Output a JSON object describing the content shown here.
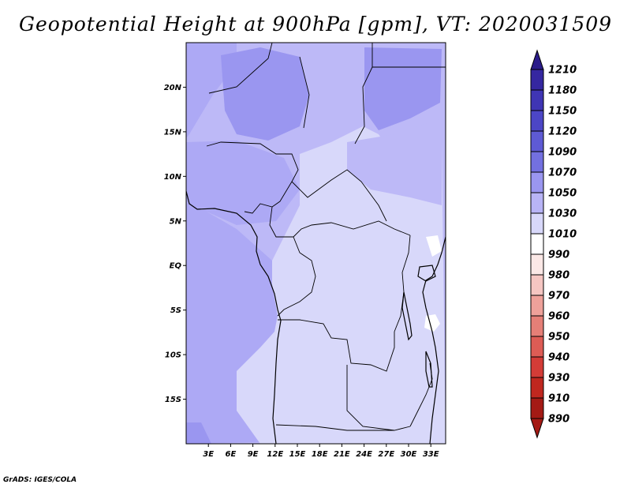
{
  "title": "Geopotential Height at 900hPa [gpm], VT: 2020031509",
  "footer": "GrADS: IGES/COLA",
  "map": {
    "lon_range": [
      0,
      35
    ],
    "lat_range": [
      -20,
      25
    ],
    "lat_ticks": [
      {
        "value": 20,
        "label": "20N"
      },
      {
        "value": 15,
        "label": "15N"
      },
      {
        "value": 10,
        "label": "10N"
      },
      {
        "value": 5,
        "label": "5N"
      },
      {
        "value": 0,
        "label": "EQ"
      },
      {
        "value": -5,
        "label": "5S"
      },
      {
        "value": -10,
        "label": "10S"
      },
      {
        "value": -15,
        "label": "15S"
      }
    ],
    "lon_ticks": [
      {
        "value": 3,
        "label": "3E"
      },
      {
        "value": 6,
        "label": "6E"
      },
      {
        "value": 9,
        "label": "9E"
      },
      {
        "value": 12,
        "label": "12E"
      },
      {
        "value": 15,
        "label": "15E"
      },
      {
        "value": 18,
        "label": "18E"
      },
      {
        "value": 21,
        "label": "21E"
      },
      {
        "value": 24,
        "label": "24E"
      },
      {
        "value": 27,
        "label": "27E"
      },
      {
        "value": 30,
        "label": "30E"
      },
      {
        "value": 33,
        "label": "33E"
      }
    ]
  },
  "colorbar": {
    "levels": [
      {
        "label": "1210",
        "color": "#2b1c8a"
      },
      {
        "label": "1180",
        "color": "#3527a0"
      },
      {
        "label": "1150",
        "color": "#3f35b4"
      },
      {
        "label": "1120",
        "color": "#4c46c6"
      },
      {
        "label": "1090",
        "color": "#5e5ad4"
      },
      {
        "label": "1070",
        "color": "#7370e0"
      },
      {
        "label": "1050",
        "color": "#9a96f0"
      },
      {
        "label": "1030",
        "color": "#b8b4f6"
      },
      {
        "label": "1010",
        "color": "#d8d8fa"
      },
      {
        "label": "990",
        "color": "#ffffff"
      },
      {
        "label": "980",
        "color": "#fbe8e6"
      },
      {
        "label": "970",
        "color": "#f5c6c2"
      },
      {
        "label": "960",
        "color": "#eea19a"
      },
      {
        "label": "950",
        "color": "#e57f77"
      },
      {
        "label": "940",
        "color": "#dd5c55"
      },
      {
        "label": "930",
        "color": "#d33c37"
      },
      {
        "label": "910",
        "color": "#c0271f"
      },
      {
        "label": "890",
        "color": "#a41a15"
      }
    ]
  },
  "shading": {
    "zone_1090": "#9a96f0",
    "zone_1070": "#ada9f5",
    "zone_1050": "#bdb9f7",
    "zone_1030": "#d8d8fa",
    "zone_1010": "#ffffff"
  }
}
